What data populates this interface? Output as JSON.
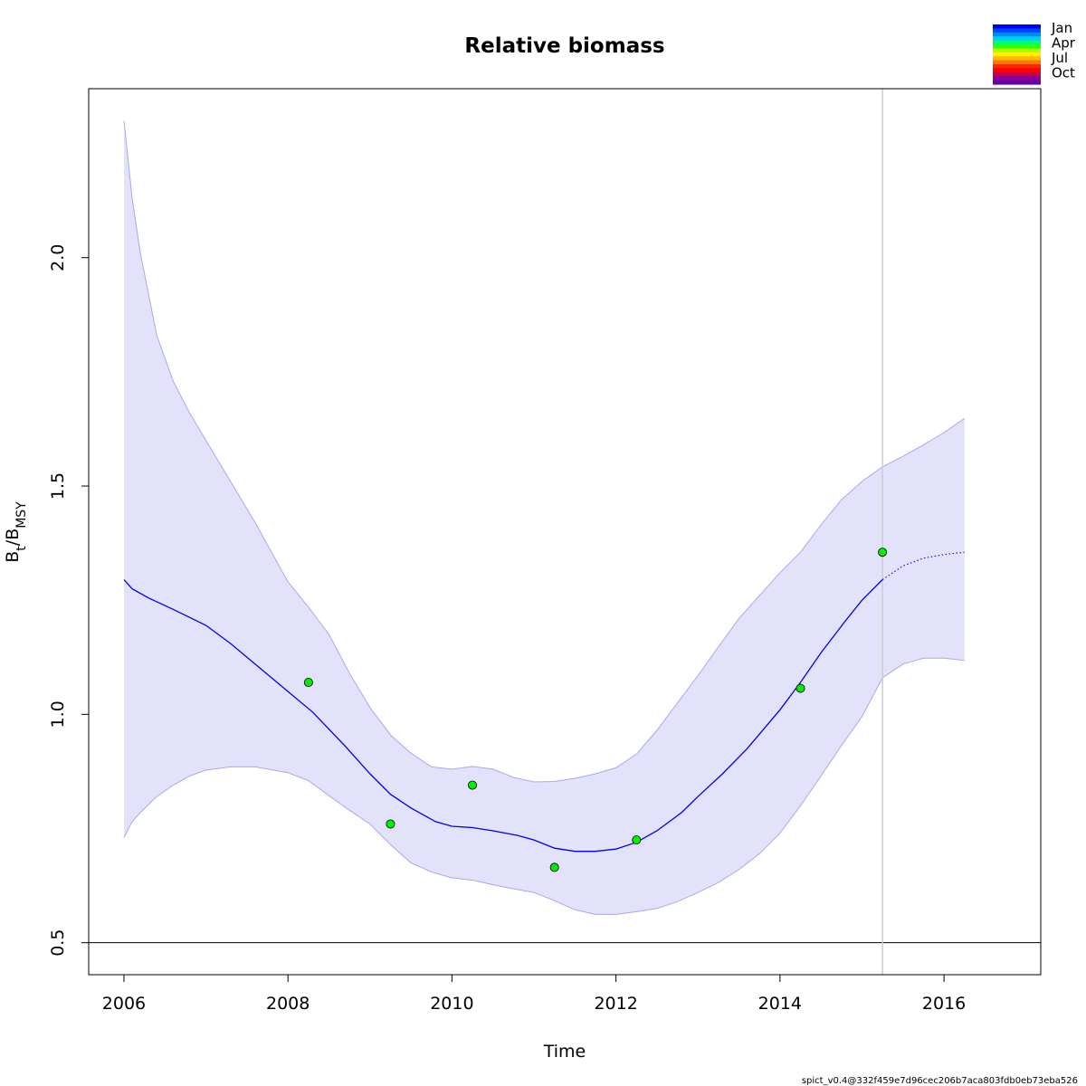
{
  "chart_data": {
    "type": "line",
    "title": "Relative biomass",
    "xlabel": "Time",
    "ylabel": {
      "main": "B",
      "sub1": "t",
      "sep": "/B",
      "sub2": "MSY"
    },
    "xlim": [
      2005.57,
      2017.18
    ],
    "ylim": [
      0.43,
      2.37
    ],
    "x_ticks": [
      2006,
      2008,
      2010,
      2012,
      2014,
      2016
    ],
    "x_tick_labels": [
      "2006",
      "2008",
      "2010",
      "2012",
      "2014",
      "2016"
    ],
    "y_ticks": [
      0.5,
      1.0,
      1.5,
      2.0
    ],
    "y_tick_labels": [
      "0.5",
      "1.0",
      "1.5",
      "2.0"
    ],
    "grid": false,
    "reference_line": {
      "y": 0.5,
      "color": "#000000"
    },
    "vertical_line": {
      "x": 2015.25,
      "color": "#cccccc"
    },
    "band_color": "#e2e2fb",
    "band_edge_color": "#a8a8ef",
    "line_color": "#0000ee",
    "estimate": {
      "x": [
        2006.0,
        2006.1,
        2006.3,
        2006.6,
        2007.0,
        2007.3,
        2007.7,
        2008.0,
        2008.3,
        2008.7,
        2009.0,
        2009.25,
        2009.5,
        2009.8,
        2010.0,
        2010.25,
        2010.5,
        2010.8,
        2011.0,
        2011.25,
        2011.5,
        2011.75,
        2012.0,
        2012.25,
        2012.5,
        2012.8,
        2013.0,
        2013.3,
        2013.6,
        2014.0,
        2014.25,
        2014.5,
        2014.8,
        2015.0,
        2015.25
      ],
      "y": [
        1.295,
        1.275,
        1.255,
        1.23,
        1.195,
        1.155,
        1.095,
        1.05,
        1.005,
        0.93,
        0.87,
        0.825,
        0.795,
        0.765,
        0.755,
        0.752,
        0.745,
        0.735,
        0.725,
        0.707,
        0.7,
        0.7,
        0.705,
        0.72,
        0.745,
        0.785,
        0.82,
        0.87,
        0.925,
        1.01,
        1.07,
        1.135,
        1.205,
        1.25,
        1.295
      ]
    },
    "forecast": {
      "x": [
        2015.25,
        2015.5,
        2015.75,
        2016.0,
        2016.25
      ],
      "y": [
        1.295,
        1.325,
        1.342,
        1.35,
        1.355
      ]
    },
    "upper_band": {
      "x": [
        2006.0,
        2006.1,
        2006.2,
        2006.4,
        2006.6,
        2006.8,
        2007.0,
        2007.3,
        2007.6,
        2008.0,
        2008.25,
        2008.5,
        2008.75,
        2009.0,
        2009.25,
        2009.5,
        2009.75,
        2010.0,
        2010.25,
        2010.5,
        2010.75,
        2011.0,
        2011.25,
        2011.5,
        2011.75,
        2012.0,
        2012.25,
        2012.5,
        2012.75,
        2013.0,
        2013.25,
        2013.5,
        2013.75,
        2014.0,
        2014.25,
        2014.5,
        2014.75,
        2015.0,
        2015.25,
        2015.5,
        2015.75,
        2016.0,
        2016.25
      ],
      "y": [
        2.3,
        2.13,
        2.01,
        1.83,
        1.73,
        1.66,
        1.6,
        1.51,
        1.42,
        1.29,
        1.235,
        1.175,
        1.09,
        1.015,
        0.955,
        0.915,
        0.885,
        0.88,
        0.886,
        0.88,
        0.862,
        0.852,
        0.853,
        0.86,
        0.87,
        0.883,
        0.913,
        0.965,
        1.025,
        1.085,
        1.148,
        1.21,
        1.26,
        1.31,
        1.355,
        1.415,
        1.47,
        1.51,
        1.542,
        1.565,
        1.59,
        1.617,
        1.648
      ]
    },
    "lower_band": {
      "x": [
        2006.0,
        2006.1,
        2006.2,
        2006.4,
        2006.6,
        2006.8,
        2007.0,
        2007.3,
        2007.6,
        2008.0,
        2008.25,
        2008.5,
        2008.75,
        2009.0,
        2009.25,
        2009.5,
        2009.75,
        2010.0,
        2010.25,
        2010.5,
        2010.75,
        2011.0,
        2011.25,
        2011.5,
        2011.75,
        2012.0,
        2012.25,
        2012.5,
        2012.75,
        2013.0,
        2013.25,
        2013.5,
        2013.75,
        2014.0,
        2014.25,
        2014.5,
        2014.75,
        2015.0,
        2015.25,
        2015.5,
        2015.75,
        2016.0,
        2016.25
      ],
      "y": [
        0.73,
        0.765,
        0.785,
        0.82,
        0.845,
        0.865,
        0.878,
        0.885,
        0.885,
        0.872,
        0.855,
        0.822,
        0.79,
        0.76,
        0.715,
        0.675,
        0.655,
        0.642,
        0.637,
        0.627,
        0.618,
        0.61,
        0.592,
        0.572,
        0.562,
        0.562,
        0.568,
        0.575,
        0.59,
        0.61,
        0.632,
        0.66,
        0.695,
        0.74,
        0.8,
        0.865,
        0.932,
        0.995,
        1.08,
        1.11,
        1.123,
        1.123,
        1.118
      ]
    },
    "observations": {
      "x": [
        2008.25,
        2009.25,
        2010.25,
        2011.25,
        2012.25,
        2014.25,
        2015.25
      ],
      "y": [
        1.07,
        0.76,
        0.845,
        0.665,
        0.725,
        1.057,
        1.355
      ],
      "color": "#00ee00"
    },
    "legend": {
      "placement": "top-right",
      "labels": [
        "Jan",
        "Apr",
        "Jul",
        "Oct"
      ],
      "colors": [
        "#0000ff",
        "#0044ff",
        "#0088ff",
        "#00ccff",
        "#00ff66",
        "#33ff00",
        "#aaff00",
        "#ffee00",
        "#ffbb00",
        "#ff7700",
        "#ff2200",
        "#ff0000",
        "#cc0044",
        "#880099",
        "#6600aa"
      ]
    },
    "footnote": "spict_v0.4@332f459e7d96cec206b7aca803fdb0eb73eba526"
  }
}
